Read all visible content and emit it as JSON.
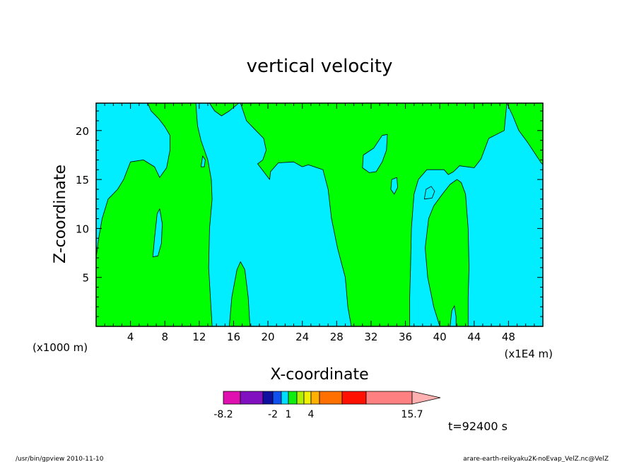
{
  "chart_data": {
    "type": "heatmap",
    "title": "vertical velocity",
    "xlabel": "X-coordinate",
    "ylabel": "Z-coordinate",
    "x_unit_left": "(x1000 m)",
    "x_unit_right": "(x1E4 m)",
    "xlim": [
      0,
      52
    ],
    "ylim": [
      0,
      22.8
    ],
    "x_ticks": [
      4,
      8,
      12,
      16,
      20,
      24,
      28,
      32,
      36,
      40,
      44,
      48
    ],
    "y_ticks": [
      5,
      10,
      15,
      20
    ],
    "time_label": "t=92400 s",
    "colors": {
      "positive": "#00ff00",
      "negative": "#00eeff",
      "contour": "#000000"
    },
    "positive_regions": [
      {
        "name": "left-updraft",
        "points": [
          [
            0,
            0
          ],
          [
            13.5,
            0
          ],
          [
            13.3,
            3
          ],
          [
            13.1,
            6
          ],
          [
            13.2,
            10
          ],
          [
            13.5,
            13
          ],
          [
            13.4,
            15
          ],
          [
            13,
            17
          ],
          [
            12.6,
            18
          ],
          [
            12.2,
            19
          ],
          [
            11.8,
            20.5
          ],
          [
            11.6,
            22.8
          ],
          [
            6,
            22.8
          ],
          [
            6.4,
            22
          ],
          [
            7.3,
            21.2
          ],
          [
            8,
            20.4
          ],
          [
            8.6,
            19.5
          ],
          [
            8.6,
            18
          ],
          [
            8.2,
            16.2
          ],
          [
            7.4,
            15.2
          ],
          [
            6.8,
            16.3
          ],
          [
            5.5,
            17
          ],
          [
            4,
            16.8
          ],
          [
            3.2,
            15
          ],
          [
            2.5,
            14
          ],
          [
            1.4,
            13
          ],
          [
            0.7,
            11
          ],
          [
            0.3,
            9
          ],
          [
            0,
            7
          ]
        ]
      },
      {
        "name": "central-updraft",
        "points": [
          [
            13.2,
            22.8
          ],
          [
            13.8,
            22
          ],
          [
            14.6,
            21.5
          ],
          [
            15.5,
            22
          ],
          [
            16.6,
            22.8
          ]
        ]
      },
      {
        "name": "wide-updraft",
        "points": [
          [
            16.8,
            22.8
          ],
          [
            17.5,
            21
          ],
          [
            18.6,
            20
          ],
          [
            19.5,
            19.2
          ],
          [
            19.8,
            18
          ],
          [
            19.4,
            17
          ],
          [
            18.8,
            16.6
          ],
          [
            19.5,
            15.8
          ],
          [
            20.2,
            15
          ],
          [
            20.3,
            15.8
          ],
          [
            21.2,
            16.7
          ],
          [
            23,
            16.8
          ],
          [
            24,
            16.3
          ],
          [
            24.7,
            16.5
          ],
          [
            26.4,
            16
          ],
          [
            27,
            14
          ],
          [
            27.4,
            11
          ],
          [
            28.1,
            8
          ],
          [
            29,
            5
          ],
          [
            29.3,
            2
          ],
          [
            29.7,
            0
          ],
          [
            36.5,
            0
          ],
          [
            36.5,
            3
          ],
          [
            36.6,
            6
          ],
          [
            36.7,
            10
          ],
          [
            37,
            13.5
          ],
          [
            37.5,
            15
          ],
          [
            38.5,
            16
          ],
          [
            40.5,
            16
          ],
          [
            41,
            15.5
          ],
          [
            41.6,
            15.8
          ],
          [
            42.3,
            16.4
          ],
          [
            44,
            16.2
          ],
          [
            44.8,
            17.1
          ],
          [
            45.7,
            19.2
          ],
          [
            47.5,
            20
          ],
          [
            47.8,
            22.8
          ]
        ]
      },
      {
        "name": "right-updraft",
        "points": [
          [
            40,
            0
          ],
          [
            39.3,
            2
          ],
          [
            38.6,
            5
          ],
          [
            38.3,
            8
          ],
          [
            38.7,
            11
          ],
          [
            39.3,
            12.3
          ],
          [
            40.3,
            13.5
          ],
          [
            41.2,
            14.5
          ],
          [
            42,
            15
          ],
          [
            42.5,
            14.7
          ],
          [
            43,
            13.5
          ],
          [
            43.3,
            10
          ],
          [
            43.4,
            6
          ],
          [
            43.3,
            3
          ],
          [
            43.3,
            0
          ]
        ]
      },
      {
        "name": "far-right-updraft",
        "points": [
          [
            47.8,
            22.8
          ],
          [
            48.5,
            21.5
          ],
          [
            49.2,
            20
          ],
          [
            50.3,
            18.7
          ],
          [
            51.2,
            17.5
          ],
          [
            51.8,
            16.7
          ],
          [
            52,
            16.5
          ],
          [
            52,
            22.8
          ]
        ]
      },
      {
        "name": "narrow-updraft",
        "points": [
          [
            15.5,
            0
          ],
          [
            15.8,
            3
          ],
          [
            16.4,
            5.8
          ],
          [
            16.8,
            6.6
          ],
          [
            17.3,
            5.8
          ],
          [
            17.7,
            3
          ],
          [
            17.9,
            0
          ]
        ]
      }
    ],
    "negative_regions": [
      {
        "name": "pocket-1",
        "points": [
          [
            6.6,
            7.1
          ],
          [
            6.8,
            9
          ],
          [
            7.1,
            11.5
          ],
          [
            7.4,
            12
          ],
          [
            7.7,
            10.5
          ],
          [
            7.6,
            8.5
          ],
          [
            7.2,
            7.2
          ]
        ]
      },
      {
        "name": "pocket-2",
        "points": [
          [
            12.2,
            16.3
          ],
          [
            12.4,
            17.4
          ],
          [
            12.7,
            17
          ],
          [
            12.6,
            16.3
          ]
        ]
      },
      {
        "name": "pocket-3",
        "points": [
          [
            31,
            16.2
          ],
          [
            31.1,
            17.5
          ],
          [
            32.3,
            18.2
          ],
          [
            33.3,
            19.5
          ],
          [
            33.9,
            19.6
          ],
          [
            33.8,
            18
          ],
          [
            33.3,
            16.8
          ],
          [
            32.6,
            15.8
          ],
          [
            31.8,
            15.7
          ]
        ]
      },
      {
        "name": "pocket-4",
        "points": [
          [
            34.3,
            14
          ],
          [
            34.4,
            15
          ],
          [
            35,
            15.2
          ],
          [
            35.1,
            14.2
          ],
          [
            34.7,
            13.5
          ]
        ]
      },
      {
        "name": "pocket-5",
        "points": [
          [
            38.2,
            13
          ],
          [
            38.4,
            14
          ],
          [
            39,
            14.3
          ],
          [
            39.4,
            13.8
          ],
          [
            39.1,
            13.1
          ]
        ]
      },
      {
        "name": "pocket-6",
        "points": [
          [
            41.2,
            0
          ],
          [
            41.4,
            1.6
          ],
          [
            41.7,
            2.1
          ],
          [
            41.9,
            1
          ],
          [
            41.9,
            0
          ]
        ]
      }
    ],
    "colorbar": {
      "colors": [
        "#e010b0",
        "#8010c0",
        "#1010a0",
        "#1050f0",
        "#00ddff",
        "#10ee10",
        "#b0f000",
        "#f0f000",
        "#ffb000",
        "#ff7000",
        "#ff1000",
        "#ff8080"
      ],
      "tick_labels": [
        "-8.2",
        "-2",
        "1",
        "4",
        "15.7"
      ]
    }
  },
  "footer": {
    "left": "/usr/bin/gpview  2010-11-10",
    "right": "arare-earth-reikyaku2K-noEvap_VelZ.nc@VelZ"
  }
}
